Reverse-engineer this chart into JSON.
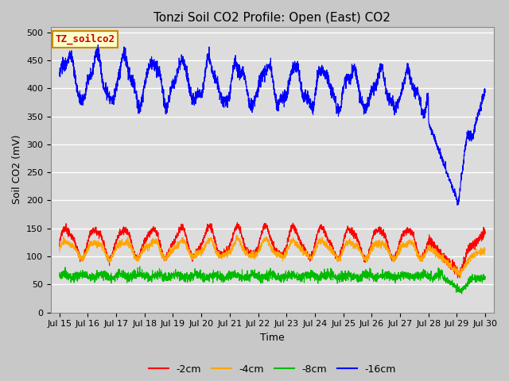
{
  "title": "Tonzi Soil CO2 Profile: Open (East) CO2",
  "xlabel": "Time",
  "ylabel": "Soil CO2 (mV)",
  "ylim": [
    0,
    510
  ],
  "yticks": [
    0,
    50,
    100,
    150,
    200,
    250,
    300,
    350,
    400,
    450,
    500
  ],
  "x_tick_labels": [
    "Jul 15",
    "Jul 16",
    "Jul 17",
    "Jul 18",
    "Jul 19",
    "Jul 20",
    "Jul 21",
    "Jul 22",
    "Jul 23",
    "Jul 24",
    "Jul 25",
    "Jul 26",
    "Jul 27",
    "Jul 28",
    "Jul 29",
    "Jul 30"
  ],
  "line_colors": {
    "2cm": "#ff0000",
    "4cm": "#ffa500",
    "8cm": "#00bb00",
    "16cm": "#0000ff"
  },
  "legend_labels": [
    "-2cm",
    "-4cm",
    "-8cm",
    "-16cm"
  ],
  "annotation_text": "TZ_soilco2",
  "annotation_box_color": "#ffffcc",
  "annotation_box_edge": "#cc8800",
  "annotation_text_color": "#cc0000",
  "plot_bg_color": "#dcdcdc",
  "fig_bg_color": "#c8c8c8",
  "grid_color": "#ffffff",
  "title_fontsize": 11,
  "axis_label_fontsize": 9,
  "tick_fontsize": 8,
  "legend_fontsize": 9
}
